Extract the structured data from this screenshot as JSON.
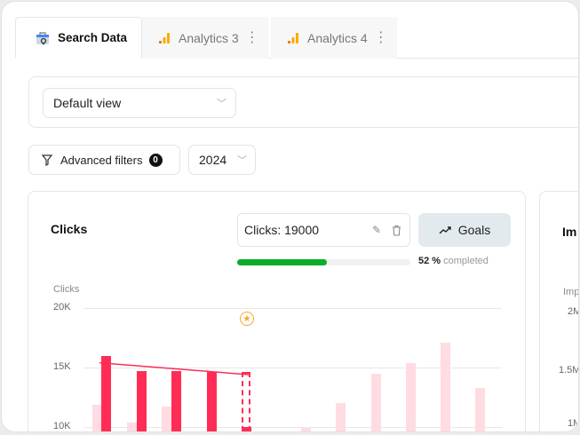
{
  "tabs": [
    {
      "label": "Search Data",
      "icon": "search-console-icon",
      "active": true
    },
    {
      "label": "Analytics 3",
      "icon": "analytics-bars-icon",
      "active": false
    },
    {
      "label": "Analytics 4",
      "icon": "analytics-bars-icon",
      "active": false
    }
  ],
  "view_select": {
    "value": "Default view"
  },
  "filters": {
    "label": "Advanced filters",
    "count": "0",
    "year": "2024"
  },
  "clicks_card": {
    "title": "Clicks",
    "goal_value": "Clicks: 19000",
    "goals_button": "Goals",
    "progress_percent": 52,
    "progress_label": "52 %",
    "progress_suffix": "completed"
  },
  "impressions_card": {
    "title": "Im",
    "axis_label": "Imp",
    "ticks": [
      "2M",
      "1.5M",
      "1M"
    ]
  },
  "colors": {
    "current": "#ff2d55",
    "previous": "#ffdbe2",
    "progress": "#0aad2b",
    "goal_marker": "#f5a623"
  },
  "chart_data": {
    "type": "bar",
    "ylabel": "Clicks",
    "y_ticks": [
      {
        "value": 20000,
        "label": "20K"
      },
      {
        "value": 15000,
        "label": "15K"
      },
      {
        "value": 10000,
        "label": "10K"
      }
    ],
    "previous_year": [
      11900,
      10400,
      11700,
      null,
      null,
      null,
      9900,
      12000,
      14500,
      15400,
      17100,
      13300
    ],
    "current_year": [
      16000,
      14700,
      14700,
      14600,
      10000
    ],
    "current_projected_last": 14600,
    "trend": [
      15400,
      14400
    ],
    "goal_marker_index": 4
  }
}
